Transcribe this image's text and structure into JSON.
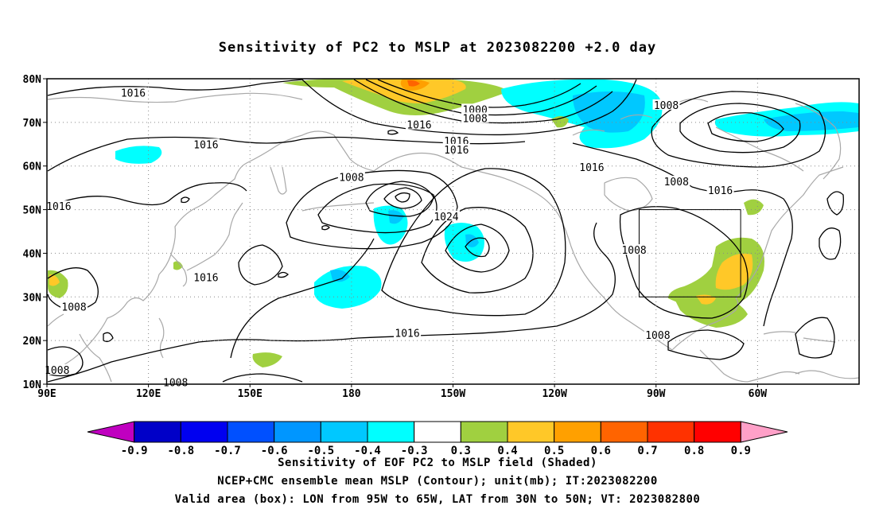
{
  "title": "Sensitivity of PC2 to MSLP at 2023082200 +2.0 day",
  "lat_labels": [
    "80N",
    "70N",
    "60N",
    "50N",
    "40N",
    "30N",
    "20N",
    "10N"
  ],
  "lon_labels": [
    "90E",
    "120E",
    "150E",
    "180",
    "150W",
    "120W",
    "90W",
    "60W"
  ],
  "contour_labels": [
    {
      "text": "1016",
      "lon": 115.5,
      "lat": 76.8
    },
    {
      "text": "1000",
      "lon": -143.5,
      "lat": 73.0
    },
    {
      "text": "1008",
      "lon": -143.5,
      "lat": 71.0
    },
    {
      "text": "1016",
      "lon": -160.0,
      "lat": 69.5
    },
    {
      "text": "1008",
      "lon": -87.0,
      "lat": 74.0
    },
    {
      "text": "1016",
      "lon": 137.0,
      "lat": 65.0
    },
    {
      "text": "1016",
      "lon": -149.0,
      "lat": 65.8
    },
    {
      "text": "1016",
      "lon": -149.0,
      "lat": 63.8
    },
    {
      "text": "1016",
      "lon": -109.0,
      "lat": 59.8
    },
    {
      "text": "1008",
      "lon": -180.0,
      "lat": 57.5
    },
    {
      "text": "1008",
      "lon": -84.0,
      "lat": 56.5
    },
    {
      "text": "1016",
      "lon": -71.0,
      "lat": 54.5
    },
    {
      "text": "1016",
      "lon": 93.5,
      "lat": 50.8
    },
    {
      "text": "1024",
      "lon": -152.0,
      "lat": 48.5
    },
    {
      "text": "1008",
      "lon": -96.5,
      "lat": 40.8
    },
    {
      "text": "1016",
      "lon": 137.0,
      "lat": 34.5
    },
    {
      "text": "1008",
      "lon": 98.0,
      "lat": 27.8
    },
    {
      "text": "1016",
      "lon": -163.5,
      "lat": 21.8
    },
    {
      "text": "1008",
      "lon": -89.5,
      "lat": 21.3
    },
    {
      "text": "1008",
      "lon": 93.0,
      "lat": 13.3
    },
    {
      "text": "1008",
      "lon": 128.0,
      "lat": 10.5
    }
  ],
  "valid_box": {
    "lon_min": -95,
    "lon_max": -65,
    "lat_min": 30,
    "lat_max": 50
  },
  "colorbar": {
    "colors": [
      "#c000c0",
      "#0000c8",
      "#0000f0",
      "#0050ff",
      "#0096ff",
      "#00c8ff",
      "#00ffff",
      "#ffffff",
      "#a0d040",
      "#ffc828",
      "#ffa000",
      "#ff6400",
      "#ff3200",
      "#ff0000",
      "#ffa0c8"
    ],
    "labels": [
      "-0.9",
      "-0.8",
      "-0.7",
      "-0.6",
      "-0.5",
      "-0.4",
      "-0.3",
      "0.3",
      "0.4",
      "0.5",
      "0.6",
      "0.7",
      "0.8",
      "0.9"
    ]
  },
  "captions": {
    "line1": "Sensitivity of EOF PC2 to MSLP field (Shaded)",
    "line2": "NCEP+CMC ensemble mean MSLP (Contour); unit(mb); IT:2023082200",
    "line3": "Valid area (box): LON from 95W to 65W, LAT from 30N to 50N; VT: 2023082800"
  },
  "colors": {
    "coast": "#a8a8a8",
    "contour": "#000000",
    "grid": "#888888"
  }
}
